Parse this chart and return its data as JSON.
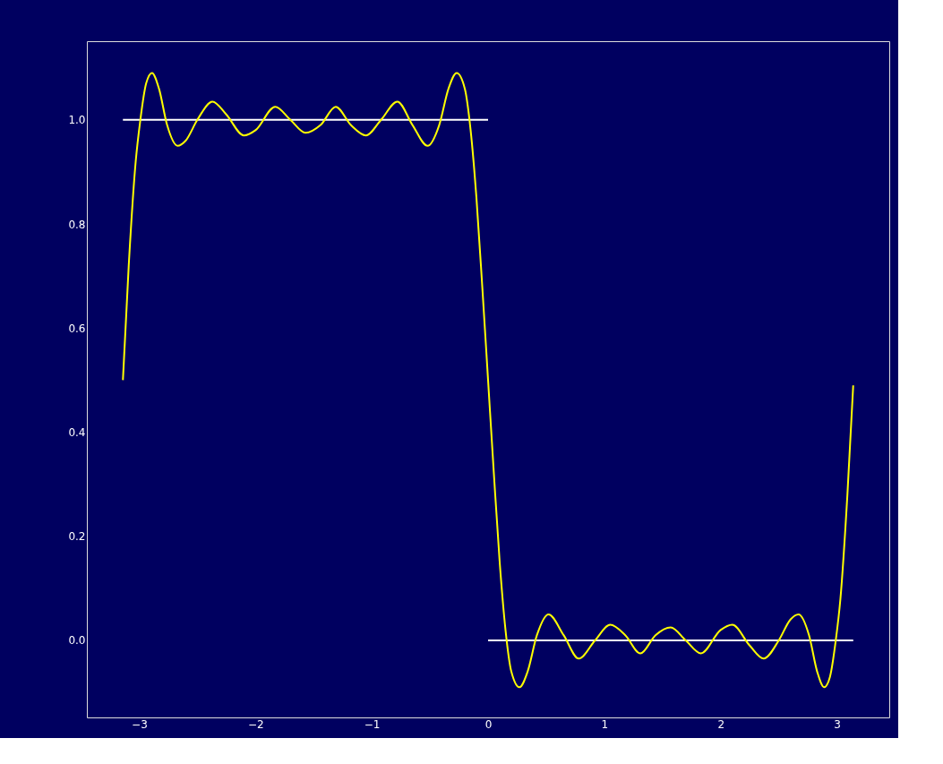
{
  "chart_data": {
    "type": "line",
    "xlim": [
      -3.45,
      3.45
    ],
    "ylim": [
      -0.148,
      1.151
    ],
    "xticks": [
      {
        "value": -3,
        "label": "−3"
      },
      {
        "value": -2,
        "label": "−2"
      },
      {
        "value": -1,
        "label": "−1"
      },
      0,
      1,
      2,
      3
    ],
    "yticks": [
      {
        "value": 0,
        "label": "0.0"
      },
      {
        "value": 0.2,
        "label": "0.2"
      },
      {
        "value": 0.4,
        "label": "0.4"
      },
      {
        "value": 0.6,
        "label": "0.6"
      },
      {
        "value": 0.8,
        "label": "0.8"
      },
      {
        "value": 1,
        "label": "1.0"
      }
    ],
    "grid": false,
    "line_style": "solid",
    "marker": "none",
    "series": [
      {
        "color": "#ffffff",
        "x": [
          -3.14,
          0
        ],
        "values": [
          1,
          1
        ]
      },
      {
        "color": "#ffffff",
        "x": [
          0,
          3.14
        ],
        "values": [
          0,
          0
        ]
      },
      {
        "color": "#ffff00",
        "x": [
          -3.14,
          -3.09,
          -3.03,
          -2.99,
          -2.94,
          -2.89,
          -2.83,
          -2.76,
          -2.67,
          -2.6,
          -2.5,
          -2.37,
          -2.25,
          -2.1,
          -2.0,
          -1.83,
          -1.7,
          -1.57,
          -1.44,
          -1.31,
          -1.18,
          -1.05,
          -0.92,
          -0.78,
          -0.65,
          -0.52,
          -0.42,
          -0.34,
          -0.27,
          -0.2,
          -0.15,
          -0.1,
          -0.05,
          0,
          0.05,
          0.1,
          0.15,
          0.2,
          0.27,
          0.34,
          0.42,
          0.52,
          0.65,
          0.78,
          0.92,
          1.05,
          1.18,
          1.31,
          1.44,
          1.57,
          1.7,
          1.83,
          2.0,
          2.1,
          2.25,
          2.37,
          2.5,
          2.6,
          2.67,
          2.76,
          2.83,
          2.89,
          2.94,
          2.99,
          3.03,
          3.09,
          3.14
        ],
        "values": [
          0.5,
          0.72,
          0.92,
          1.0,
          1.07,
          1.09,
          1.06,
          0.99,
          0.95,
          0.96,
          1.0,
          1.035,
          1.01,
          0.97,
          0.98,
          1.025,
          1.0,
          0.975,
          0.99,
          1.025,
          0.99,
          0.97,
          1.0,
          1.035,
          0.99,
          0.95,
          0.99,
          1.06,
          1.09,
          1.06,
          0.98,
          0.85,
          0.68,
          0.5,
          0.32,
          0.15,
          0.02,
          -0.06,
          -0.09,
          -0.06,
          0.01,
          0.05,
          0.01,
          -0.035,
          0.0,
          0.03,
          0.01,
          -0.025,
          0.01,
          0.025,
          0.0,
          -0.025,
          0.02,
          0.03,
          -0.01,
          -0.035,
          0.0,
          0.04,
          0.05,
          0.01,
          -0.06,
          -0.09,
          -0.07,
          0.0,
          0.08,
          0.28,
          0.49
        ]
      }
    ]
  }
}
